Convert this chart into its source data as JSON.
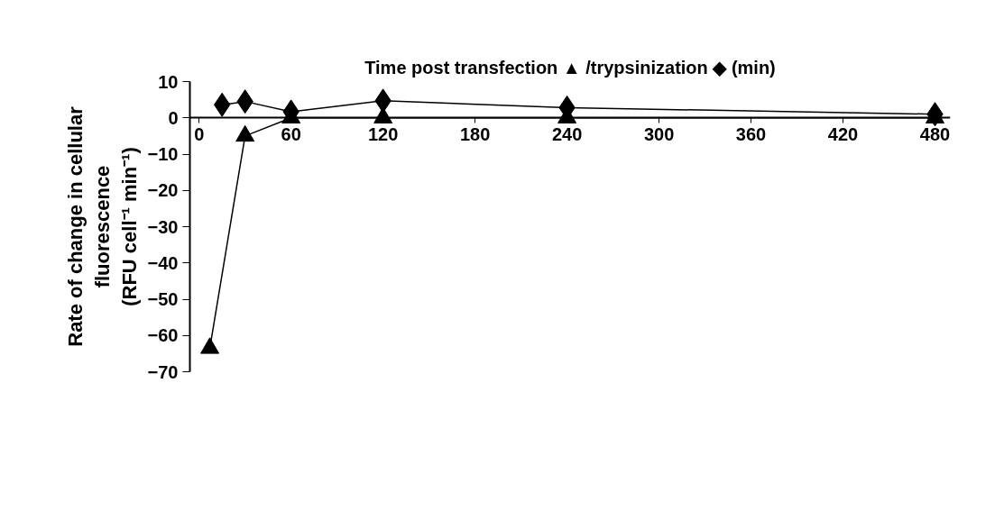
{
  "chart_data": {
    "type": "line",
    "xlabel": "Time post transfection ▲ /trypsinization ◆ (min)",
    "ylabel": "Rate of change in cellular\nfluorescence\n(RFU cell⁻¹ min⁻¹)",
    "series": [
      {
        "color": "#000000",
        "marker": "triangle",
        "x": [
          7,
          30,
          60,
          120,
          240,
          480
        ],
        "values": [
          -63.5,
          -5.0,
          0,
          0,
          0,
          0
        ]
      },
      {
        "color": "#000000",
        "marker": "diamond",
        "x": [
          15,
          30,
          60,
          120,
          240,
          480
        ],
        "values": [
          3.6,
          4.5,
          1.7,
          4.7,
          2.8,
          1.0
        ]
      }
    ],
    "xlim": [
      -6,
      490
    ],
    "xticks": [
      0,
      60,
      120,
      180,
      240,
      300,
      360,
      420,
      480
    ],
    "ylim": [
      -70,
      10
    ],
    "yticks": [
      -70,
      -60,
      -50,
      -40,
      -30,
      -20,
      -10,
      0,
      10
    ],
    "grid": false
  }
}
